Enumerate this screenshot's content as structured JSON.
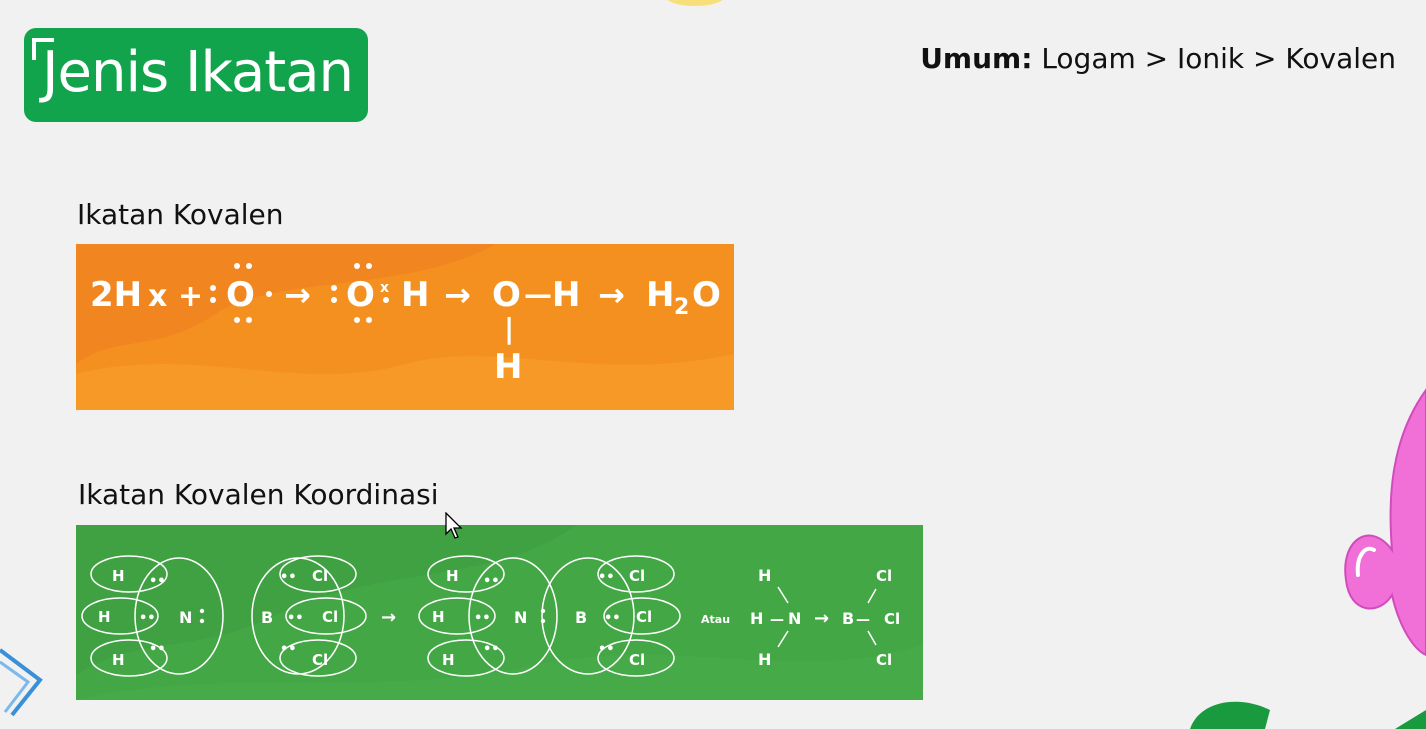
{
  "slide": {
    "title": "Jenis Ikatan",
    "summary_label": "Umum:",
    "summary_text": "Logam > Ionik > Kovalen"
  },
  "section_covalent": {
    "heading": "Ikatan Kovalen",
    "reactant_h": "2H",
    "reactant_h_mark": "x",
    "plus": "+",
    "oxygen": "O",
    "hydrogen": "H",
    "product_h": "H",
    "product_sub": "2",
    "product_o": "O",
    "arrow": "→",
    "bond": "—",
    "bond_vertical": "|"
  },
  "section_coordinate": {
    "heading": "Ikatan Kovalen Koordinasi",
    "hydrogen": "H",
    "nitrogen": "N",
    "boron": "B",
    "chlorine": "Cl",
    "atau": "Atau",
    "arrow": "→",
    "dash": "—",
    "dots": "••"
  },
  "colors": {
    "title_bg": "#12a44c",
    "orange_panel": "#f4901f",
    "green_panel": "#44a746",
    "pink_deco": "#f070d8",
    "green_deco": "#1a9a3e"
  }
}
